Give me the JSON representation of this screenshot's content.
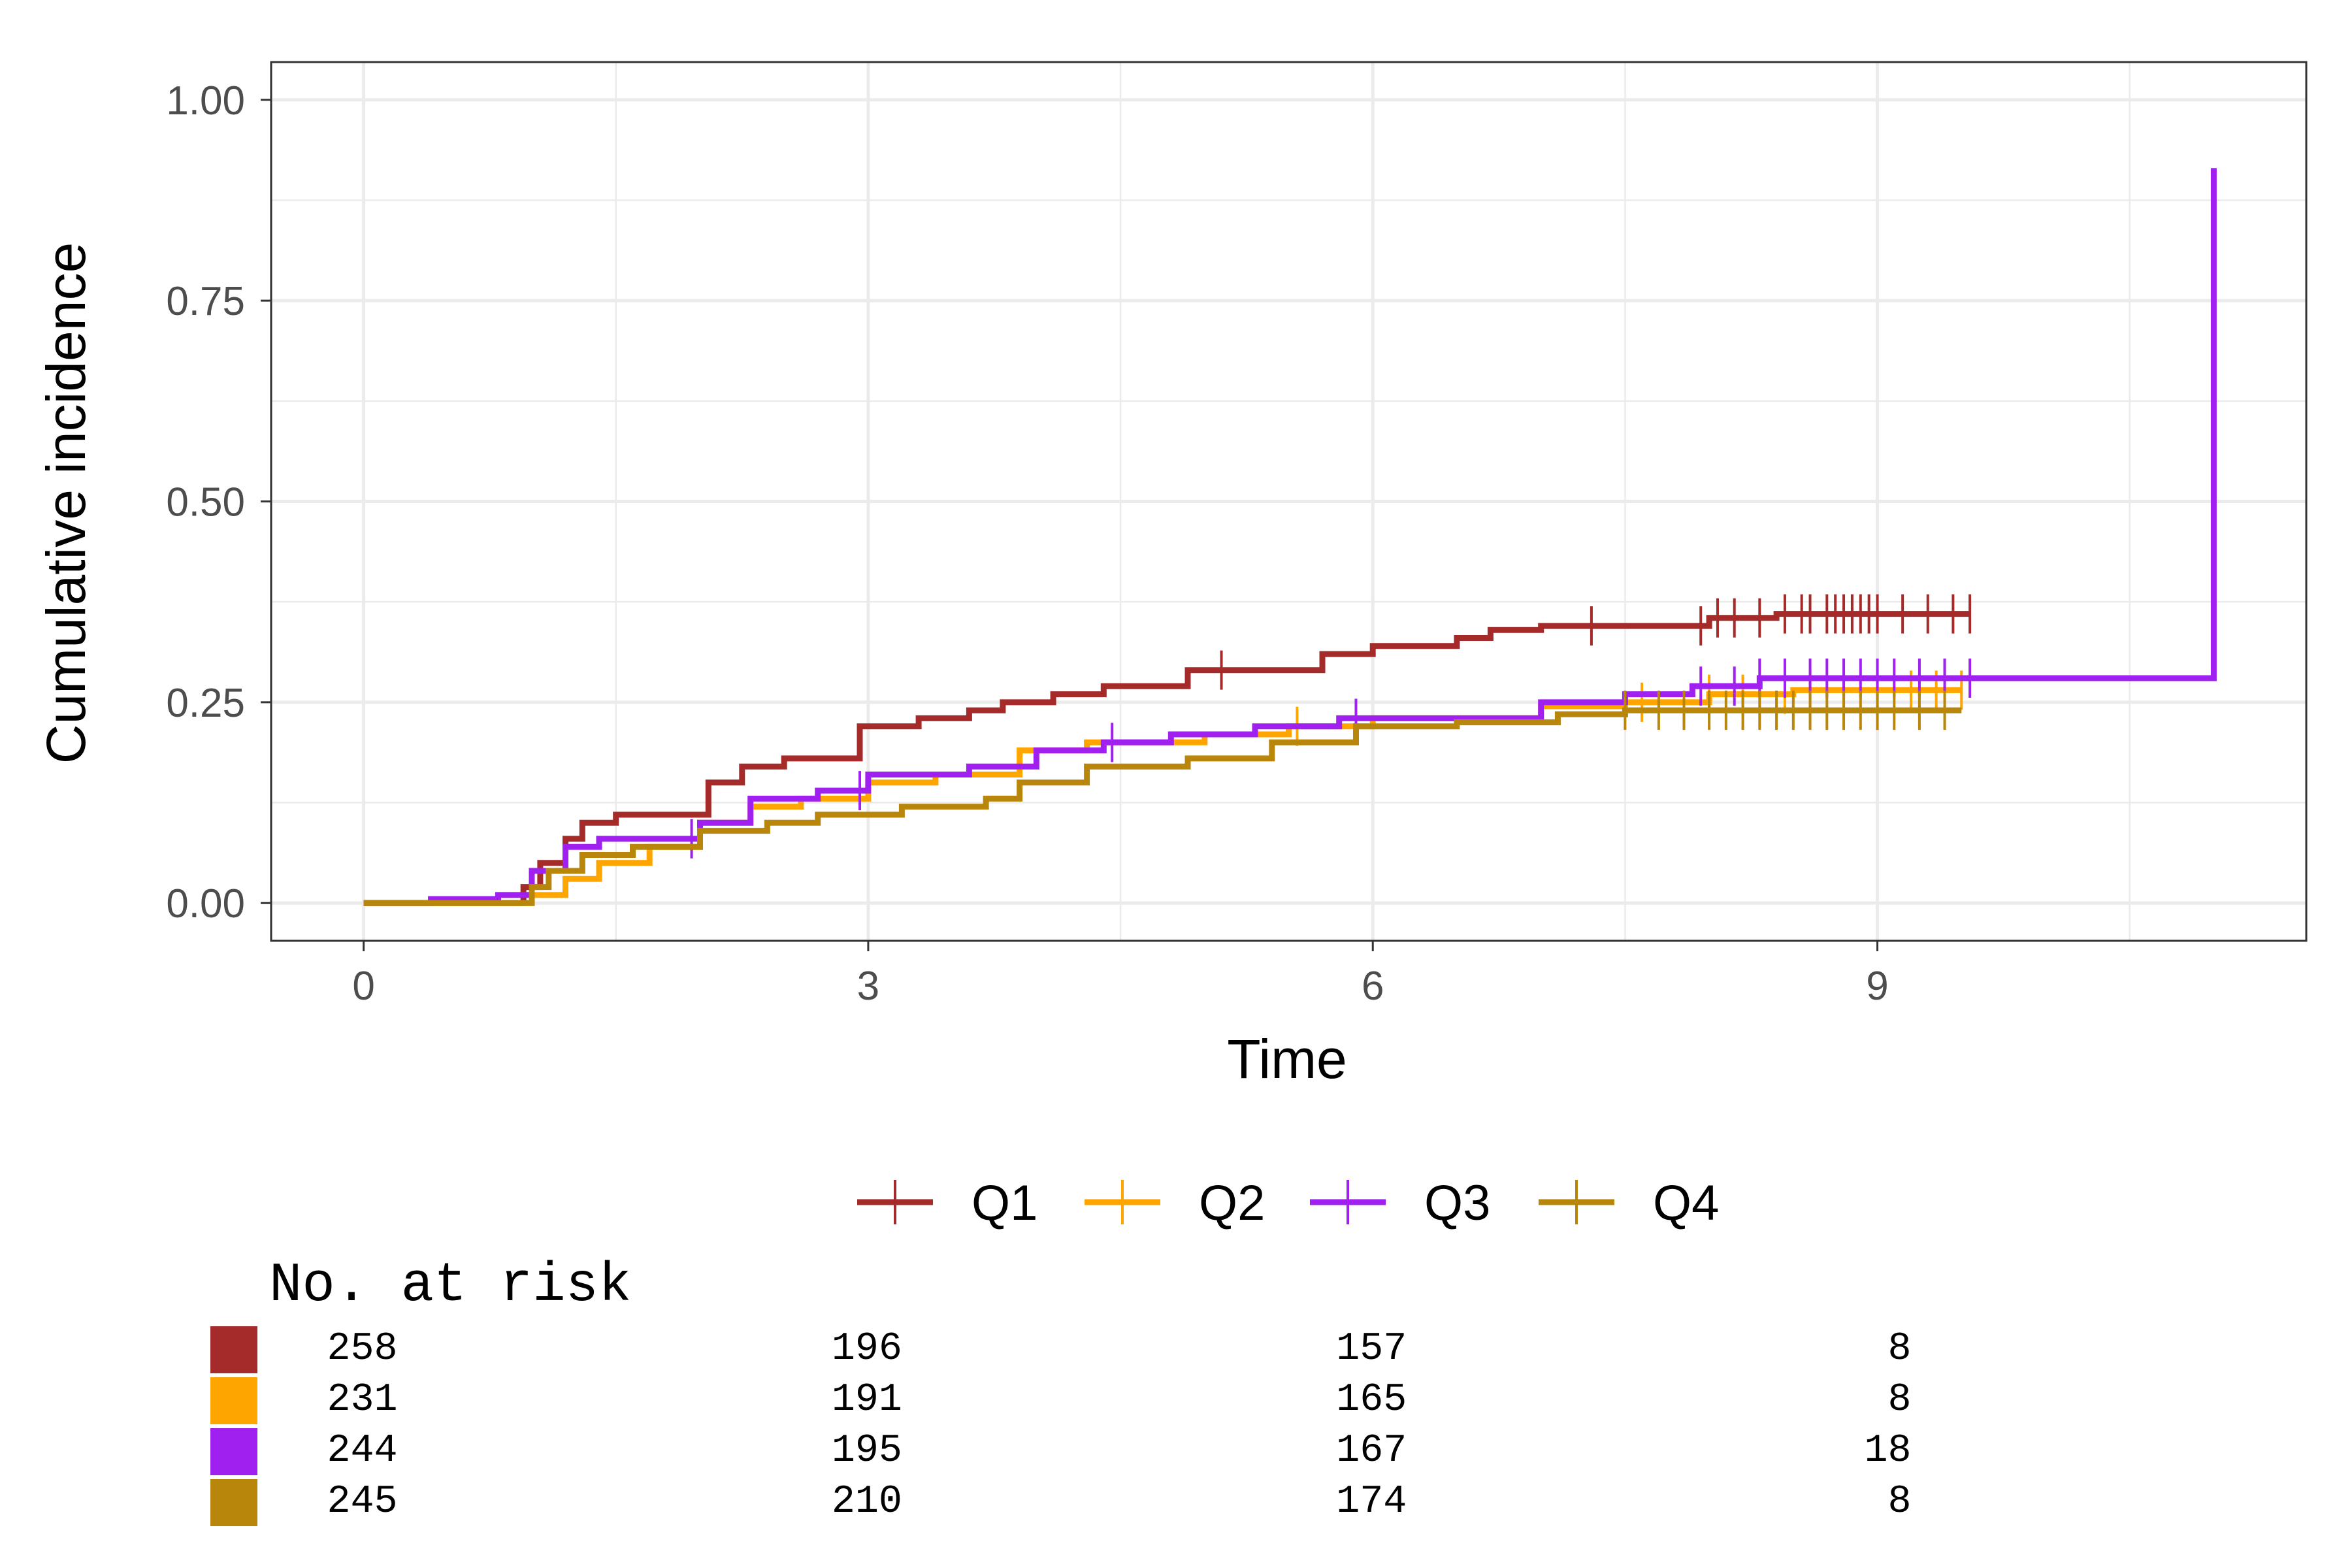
{
  "chart_data": {
    "type": "line",
    "xlabel": "Time",
    "ylabel": "Cumulative incidence",
    "xlim": [
      -0.55,
      11.55
    ],
    "ylim": [
      -0.047,
      1.047
    ],
    "x_ticks": [
      0,
      3,
      6,
      9
    ],
    "x_tick_labels": [
      "0",
      "3",
      "6",
      "9"
    ],
    "y_ticks": [
      0,
      0.25,
      0.5,
      0.75,
      1.0
    ],
    "y_tick_labels": [
      "0.00",
      "0.25",
      "0.50",
      "0.75",
      "1.00"
    ],
    "grid": true,
    "legend_position": "bottom",
    "series": [
      {
        "name": "Q1",
        "color": "#A52A2A",
        "points": [
          [
            0,
            0
          ],
          [
            0.85,
            0
          ],
          [
            0.95,
            0.02
          ],
          [
            1.05,
            0.05
          ],
          [
            1.2,
            0.08
          ],
          [
            1.3,
            0.1
          ],
          [
            1.5,
            0.11
          ],
          [
            1.9,
            0.11
          ],
          [
            2.05,
            0.15
          ],
          [
            2.25,
            0.17
          ],
          [
            2.5,
            0.18
          ],
          [
            2.8,
            0.18
          ],
          [
            2.95,
            0.22
          ],
          [
            3.3,
            0.23
          ],
          [
            3.6,
            0.24
          ],
          [
            3.8,
            0.25
          ],
          [
            4.1,
            0.26
          ],
          [
            4.4,
            0.27
          ],
          [
            4.7,
            0.27
          ],
          [
            4.9,
            0.29
          ],
          [
            5.3,
            0.29
          ],
          [
            5.7,
            0.31
          ],
          [
            6.0,
            0.32
          ],
          [
            6.5,
            0.33
          ],
          [
            6.7,
            0.34
          ],
          [
            7.0,
            0.345
          ],
          [
            7.9,
            0.345
          ],
          [
            8.0,
            0.355
          ],
          [
            8.4,
            0.36
          ],
          [
            9.55,
            0.36
          ]
        ],
        "censor_x": [
          5.1,
          7.3,
          7.95,
          8.05,
          8.15,
          8.3,
          8.45,
          8.55,
          8.6,
          8.7,
          8.75,
          8.8,
          8.85,
          8.9,
          8.95,
          9.0,
          9.15,
          9.3,
          9.45,
          9.55
        ]
      },
      {
        "name": "Q2",
        "color": "#FFA500",
        "points": [
          [
            0,
            0
          ],
          [
            0.9,
            0
          ],
          [
            1.0,
            0.01
          ],
          [
            1.2,
            0.03
          ],
          [
            1.4,
            0.05
          ],
          [
            1.7,
            0.07
          ],
          [
            2.0,
            0.1
          ],
          [
            2.3,
            0.12
          ],
          [
            2.6,
            0.13
          ],
          [
            3.0,
            0.15
          ],
          [
            3.4,
            0.16
          ],
          [
            3.9,
            0.19
          ],
          [
            4.3,
            0.2
          ],
          [
            4.6,
            0.2
          ],
          [
            5.0,
            0.21
          ],
          [
            5.5,
            0.22
          ],
          [
            6.0,
            0.23
          ],
          [
            6.5,
            0.23
          ],
          [
            7.0,
            0.245
          ],
          [
            7.5,
            0.25
          ],
          [
            8.0,
            0.26
          ],
          [
            8.5,
            0.265
          ],
          [
            9.5,
            0.265
          ]
        ],
        "censor_x": [
          5.55,
          7.6,
          8.0,
          8.2,
          8.45,
          8.6,
          8.8,
          9.0,
          9.2,
          9.35,
          9.5
        ]
      },
      {
        "name": "Q3",
        "color": "#A020F0",
        "points": [
          [
            0,
            0
          ],
          [
            0.4,
            0.005
          ],
          [
            0.8,
            0.01
          ],
          [
            1.0,
            0.04
          ],
          [
            1.2,
            0.07
          ],
          [
            1.4,
            0.08
          ],
          [
            1.9,
            0.08
          ],
          [
            2.0,
            0.1
          ],
          [
            2.3,
            0.13
          ],
          [
            2.7,
            0.14
          ],
          [
            3.0,
            0.16
          ],
          [
            3.6,
            0.17
          ],
          [
            4.0,
            0.19
          ],
          [
            4.4,
            0.2
          ],
          [
            4.8,
            0.21
          ],
          [
            5.3,
            0.22
          ],
          [
            5.8,
            0.23
          ],
          [
            6.4,
            0.23
          ],
          [
            7.0,
            0.25
          ],
          [
            7.5,
            0.26
          ],
          [
            7.9,
            0.27
          ],
          [
            8.3,
            0.28
          ],
          [
            11.0,
            0.28
          ],
          [
            11.0,
            0.915
          ]
        ],
        "censor_x": [
          1.95,
          2.95,
          4.45,
          5.9,
          7.95,
          8.15,
          8.3,
          8.45,
          8.6,
          8.7,
          8.8,
          8.9,
          9.0,
          9.1,
          9.25,
          9.4,
          9.55
        ]
      },
      {
        "name": "Q4",
        "color": "#B8860B",
        "points": [
          [
            0,
            0
          ],
          [
            0.8,
            0
          ],
          [
            1.0,
            0.02
          ],
          [
            1.1,
            0.04
          ],
          [
            1.3,
            0.06
          ],
          [
            1.6,
            0.07
          ],
          [
            2.0,
            0.09
          ],
          [
            2.4,
            0.1
          ],
          [
            2.7,
            0.11
          ],
          [
            3.2,
            0.12
          ],
          [
            3.7,
            0.13
          ],
          [
            3.9,
            0.15
          ],
          [
            4.3,
            0.17
          ],
          [
            4.9,
            0.18
          ],
          [
            5.4,
            0.2
          ],
          [
            5.9,
            0.22
          ],
          [
            6.5,
            0.225
          ],
          [
            7.1,
            0.235
          ],
          [
            7.5,
            0.24
          ],
          [
            9.5,
            0.24
          ]
        ],
        "censor_x": [
          7.5,
          7.7,
          7.85,
          8.0,
          8.1,
          8.2,
          8.3,
          8.4,
          8.5,
          8.6,
          8.7,
          8.8,
          8.9,
          9.0,
          9.1,
          9.25,
          9.4
        ]
      }
    ],
    "risk_table": {
      "title": "No. at risk",
      "times": [
        0,
        3,
        6,
        9
      ],
      "rows": [
        {
          "name": "Q1",
          "color": "#A52A2A",
          "values": [
            "258",
            "196",
            "157",
            "8"
          ]
        },
        {
          "name": "Q2",
          "color": "#FFA500",
          "values": [
            "231",
            "191",
            "165",
            "8"
          ]
        },
        {
          "name": "Q3",
          "color": "#A020F0",
          "values": [
            "244",
            "195",
            "167",
            "18"
          ]
        },
        {
          "name": "Q4",
          "color": "#B8860B",
          "values": [
            "245",
            "210",
            "174",
            "8"
          ]
        }
      ]
    }
  }
}
